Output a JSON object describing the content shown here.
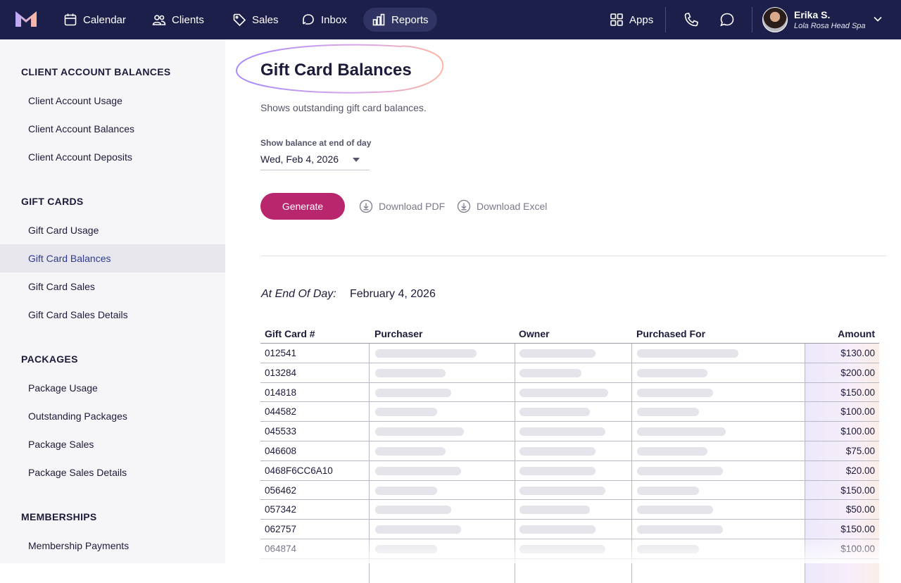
{
  "nav": {
    "items": [
      {
        "label": "Calendar",
        "icon": "calendar-icon"
      },
      {
        "label": "Clients",
        "icon": "users-icon"
      },
      {
        "label": "Sales",
        "icon": "tag-icon"
      },
      {
        "label": "Inbox",
        "icon": "inbox-icon"
      },
      {
        "label": "Reports",
        "icon": "bar-chart-icon",
        "active": true
      }
    ],
    "apps_label": "Apps",
    "user": {
      "name": "Erika S.",
      "org": "Lola Rosa Head Spa"
    }
  },
  "sidebar": {
    "sections": [
      {
        "heading": "CLIENT ACCOUNT BALANCES",
        "items": [
          "Client Account Usage",
          "Client Account Balances",
          "Client Account Deposits"
        ]
      },
      {
        "heading": "GIFT CARDS",
        "items": [
          "Gift Card Usage",
          "Gift Card Balances",
          "Gift Card Sales",
          "Gift Card Sales Details"
        ]
      },
      {
        "heading": "PACKAGES",
        "items": [
          "Package Usage",
          "Outstanding Packages",
          "Package Sales",
          "Package Sales Details"
        ]
      },
      {
        "heading": "MEMBERSHIPS",
        "items": [
          "Membership Payments"
        ]
      }
    ],
    "active_item": "Gift Card Balances"
  },
  "main": {
    "title": "Gift Card Balances",
    "subtitle": "Shows outstanding gift card balances.",
    "date_label": "Show balance at end of day",
    "date_value": "Wed, Feb 4, 2026",
    "generate_label": "Generate",
    "download_pdf_label": "Download PDF",
    "download_excel_label": "Download Excel",
    "eod_label": "At End Of Day:",
    "eod_value": "February 4, 2026"
  },
  "table": {
    "headers": [
      "Gift Card #",
      "Purchaser",
      "Owner",
      "Purchased For",
      "Amount"
    ],
    "rows": [
      {
        "id": "012541",
        "amount": "$130.00"
      },
      {
        "id": "013284",
        "amount": "$200.00"
      },
      {
        "id": "014818",
        "amount": "$150.00"
      },
      {
        "id": "044582",
        "amount": "$100.00"
      },
      {
        "id": "045533",
        "amount": "$100.00"
      },
      {
        "id": "046608",
        "amount": "$75.00"
      },
      {
        "id": "0468F6CC6A10",
        "amount": "$20.00"
      },
      {
        "id": "056462",
        "amount": "$150.00"
      },
      {
        "id": "057342",
        "amount": "$50.00"
      },
      {
        "id": "062757",
        "amount": "$150.00"
      },
      {
        "id": "064874",
        "amount": "$100.00"
      }
    ]
  },
  "colors": {
    "nav_bg": "#1c1f4a",
    "accent": "#b8266e",
    "active_link": "#2f3a8f"
  }
}
